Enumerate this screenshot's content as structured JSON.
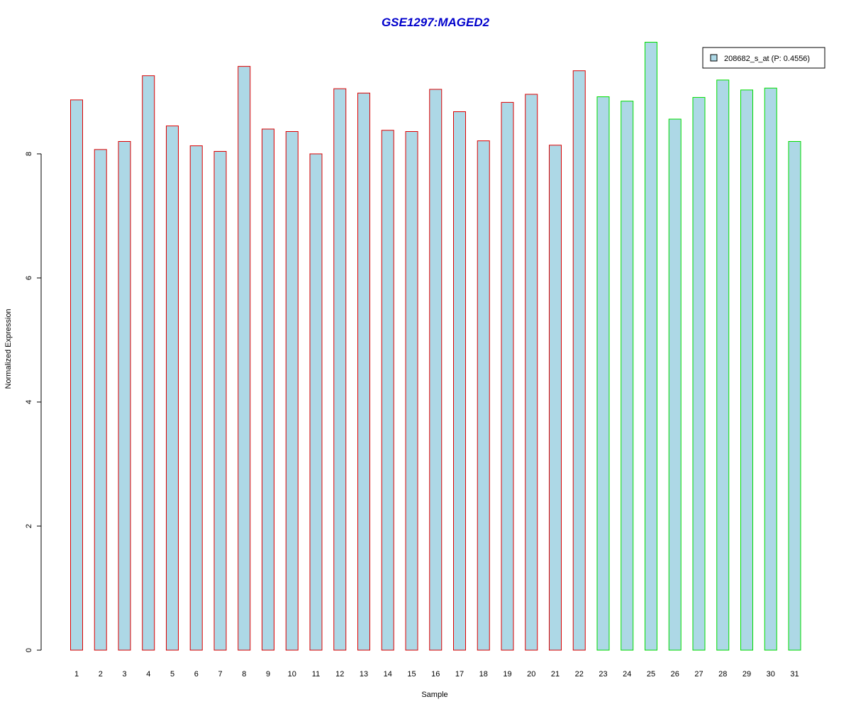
{
  "chart_data": {
    "type": "bar",
    "title": "GSE1297:MAGED2",
    "xlabel": "Sample",
    "ylabel": "Normalized Expression",
    "categories": [
      "1",
      "2",
      "3",
      "4",
      "5",
      "6",
      "7",
      "8",
      "9",
      "10",
      "11",
      "12",
      "13",
      "14",
      "15",
      "16",
      "17",
      "18",
      "19",
      "20",
      "21",
      "22",
      "23",
      "24",
      "25",
      "26",
      "27",
      "28",
      "29",
      "30",
      "31"
    ],
    "series": [
      {
        "name": "208682_s_at (P: 0.4556)",
        "values": [
          8.87,
          8.07,
          8.2,
          9.26,
          8.45,
          8.13,
          8.04,
          9.41,
          8.4,
          8.36,
          8.0,
          9.05,
          8.98,
          8.38,
          8.36,
          9.04,
          8.68,
          8.21,
          8.83,
          8.96,
          8.14,
          9.34,
          8.92,
          8.85,
          9.8,
          8.56,
          8.91,
          9.19,
          9.03,
          9.06,
          8.2
        ]
      }
    ],
    "group_colors": [
      "#dd0000",
      "#dd0000",
      "#dd0000",
      "#dd0000",
      "#dd0000",
      "#dd0000",
      "#dd0000",
      "#dd0000",
      "#dd0000",
      "#dd0000",
      "#dd0000",
      "#dd0000",
      "#dd0000",
      "#dd0000",
      "#dd0000",
      "#dd0000",
      "#dd0000",
      "#dd0000",
      "#dd0000",
      "#dd0000",
      "#dd0000",
      "#dd0000",
      "#00dd00",
      "#00dd00",
      "#00dd00",
      "#00dd00",
      "#00dd00",
      "#00dd00",
      "#00dd00",
      "#00dd00",
      "#00dd00"
    ],
    "fill_color": "#add8e6",
    "title_color": "#0000cc",
    "yticks": [
      0,
      2,
      4,
      6,
      8
    ],
    "ylim": [
      0,
      9.8
    ],
    "grid": false,
    "legend_position": "top-right"
  }
}
